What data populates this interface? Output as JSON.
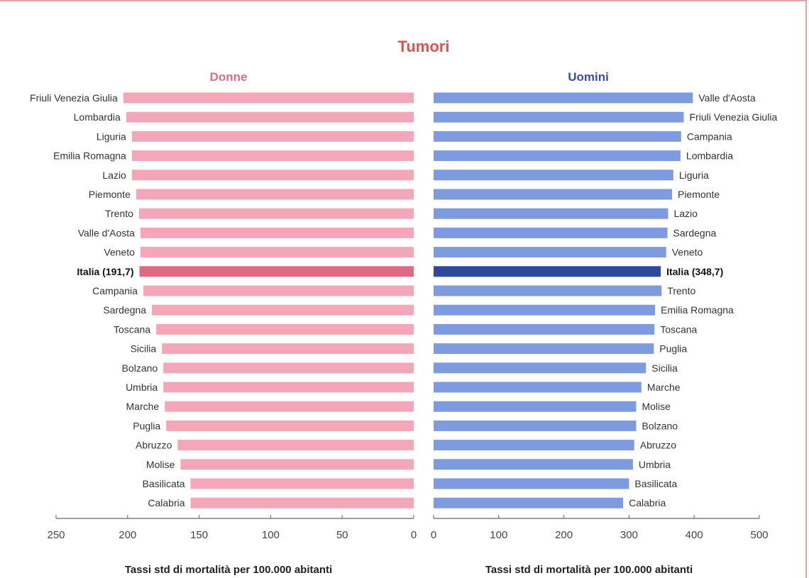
{
  "chart_data": [
    {
      "type": "bar",
      "orientation": "horizontal",
      "title": "Tumori",
      "panel_title": "Donne",
      "xlabel": "Tassi std di mortalità per 100.000 abitanti",
      "xlim": [
        250,
        0
      ],
      "xticks": [
        250,
        200,
        150,
        100,
        50,
        0
      ],
      "colors": {
        "bar": "#f4a7b9",
        "highlight": "#e06a82"
      },
      "categories": [
        "Friuli Venezia Giulia",
        "Lombardia",
        "Liguria",
        "Emilia Romagna",
        "Lazio",
        "Piemonte",
        "Trento",
        "Valle d'Aosta",
        "Veneto",
        "Italia (191,7)",
        "Campania",
        "Sardegna",
        "Toscana",
        "Sicilia",
        "Bolzano",
        "Umbria",
        "Marche",
        "Puglia",
        "Abruzzo",
        "Molise",
        "Basilicata",
        "Calabria"
      ],
      "values": [
        203,
        201,
        197,
        197,
        197,
        194,
        192,
        191,
        191,
        191.7,
        189,
        183,
        180,
        176,
        175,
        175,
        174,
        173,
        165,
        163,
        156,
        156
      ],
      "highlight_index": 9
    },
    {
      "type": "bar",
      "orientation": "horizontal",
      "panel_title": "Uomini",
      "xlabel": "Tassi std di mortalità per 100.000 abitanti",
      "xlim": [
        0,
        500
      ],
      "xticks": [
        0,
        100,
        200,
        300,
        400,
        500
      ],
      "colors": {
        "bar": "#7f9be0",
        "highlight": "#2c4a99"
      },
      "categories": [
        "Valle d'Aosta",
        "Friuli Venezia Giulia",
        "Campania",
        "Lombardia",
        "Liguria",
        "Piemonte",
        "Lazio",
        "Sardegna",
        "Veneto",
        "Italia (348,7)",
        "Trento",
        "Emilia Romagna",
        "Toscana",
        "Puglia",
        "Sicilia",
        "Marche",
        "Molise",
        "Bolzano",
        "Abruzzo",
        "Umbria",
        "Basilicata",
        "Calabria"
      ],
      "values": [
        398,
        384,
        380,
        379,
        368,
        366,
        360,
        359,
        357,
        348.7,
        350,
        340,
        339,
        338,
        326,
        319,
        311,
        311,
        308,
        306,
        300,
        291
      ],
      "highlight_index": 9
    }
  ]
}
